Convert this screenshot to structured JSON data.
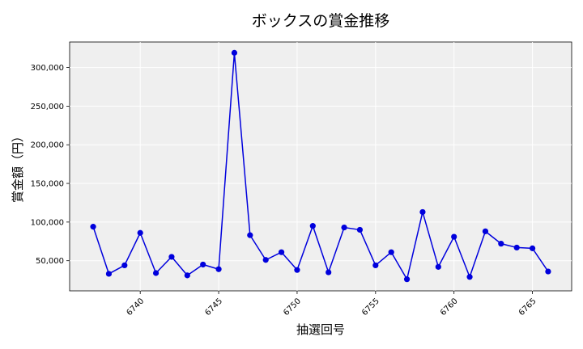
{
  "chart_data": {
    "type": "line",
    "title": "ボックスの賞金推移",
    "xlabel": "抽選回号",
    "ylabel": "賞金額（円）",
    "xlim": [
      6735.5,
      6767.5
    ],
    "ylim": [
      11000,
      333000
    ],
    "x_ticks": [
      6740,
      6745,
      6750,
      6755,
      6760,
      6765
    ],
    "x_tick_labels": [
      "6740",
      "6745",
      "6750",
      "6755",
      "6760",
      "6765"
    ],
    "y_ticks": [
      50000,
      100000,
      150000,
      200000,
      250000,
      300000
    ],
    "y_tick_labels": [
      "50,000",
      "100,000",
      "150,000",
      "200,000",
      "250,000",
      "300,000"
    ],
    "grid": true,
    "series": [
      {
        "color": "#0000dd",
        "x": [
          6737,
          6738,
          6739,
          6740,
          6741,
          6742,
          6743,
          6744,
          6745,
          6746,
          6747,
          6748,
          6749,
          6750,
          6751,
          6752,
          6753,
          6754,
          6755,
          6756,
          6757,
          6758,
          6759,
          6760,
          6761,
          6762,
          6763,
          6764,
          6765,
          6766
        ],
        "values": [
          94000,
          33000,
          44000,
          86000,
          34000,
          55000,
          31000,
          45000,
          39000,
          319000,
          83000,
          51000,
          61000,
          38000,
          95000,
          35000,
          93000,
          90000,
          44000,
          61000,
          26000,
          113000,
          42000,
          81000,
          29000,
          88000,
          72000,
          67000,
          66000,
          36000
        ]
      }
    ]
  }
}
